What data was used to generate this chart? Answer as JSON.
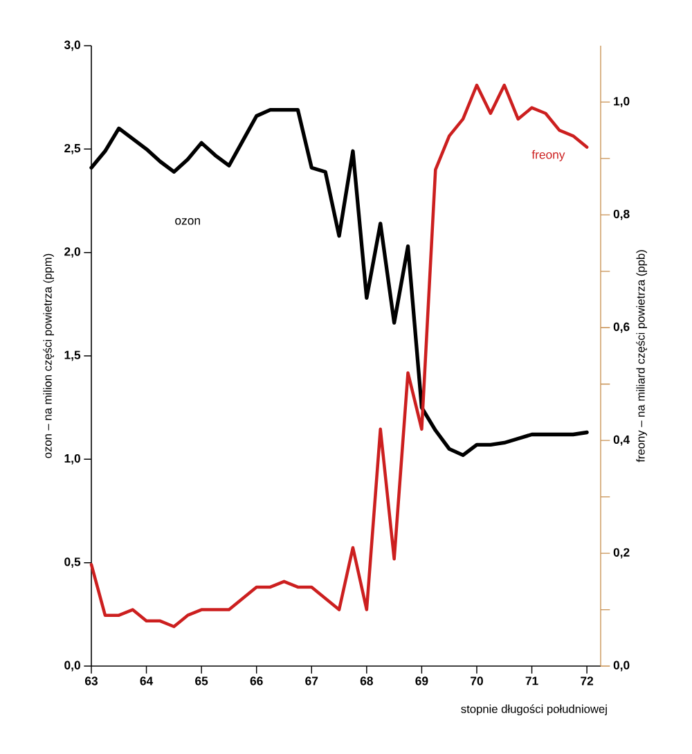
{
  "chart_data": {
    "type": "line",
    "xlabel": "stopnie długości południowej",
    "ylabel": "ozon – na milion części powietrza (ppm)",
    "y2label": "freony – na miliard części powietrza (ppb)",
    "x": [
      63,
      63.25,
      63.5,
      63.75,
      64,
      64.25,
      64.5,
      64.75,
      65,
      65.25,
      65.5,
      65.75,
      66,
      66.25,
      66.5,
      66.75,
      67,
      67.25,
      67.5,
      67.75,
      68,
      68.25,
      68.5,
      68.75,
      69,
      69.25,
      69.5,
      69.75,
      70,
      70.25,
      70.5,
      70.75,
      71,
      71.25,
      71.5,
      71.75,
      72
    ],
    "series": [
      {
        "name": "ozon",
        "color": "#000000",
        "values": [
          2.41,
          2.49,
          2.6,
          2.55,
          2.5,
          2.44,
          2.39,
          2.45,
          2.53,
          2.47,
          2.42,
          2.54,
          2.66,
          2.69,
          2.69,
          2.69,
          2.41,
          2.39,
          2.08,
          2.49,
          1.78,
          2.14,
          1.66,
          2.03,
          1.25,
          1.14,
          1.05,
          1.02,
          1.07,
          1.07,
          1.08,
          1.1,
          1.12,
          1.12,
          1.12,
          1.12,
          1.13
        ]
      },
      {
        "name": "freony",
        "color": "#cc1f1f",
        "axis": "y2",
        "values": [
          0.18,
          0.09,
          0.09,
          0.1,
          0.08,
          0.08,
          0.07,
          0.09,
          0.1,
          0.1,
          0.1,
          0.12,
          0.14,
          0.14,
          0.15,
          0.14,
          0.14,
          0.12,
          0.1,
          0.21,
          0.1,
          0.42,
          0.19,
          0.52,
          0.42,
          0.88,
          0.94,
          0.97,
          1.03,
          0.98,
          1.03,
          0.97,
          0.99,
          0.98,
          0.95,
          0.94,
          0.92
        ]
      }
    ],
    "xlim": [
      63,
      72.25
    ],
    "xticks": [
      63,
      64,
      65,
      66,
      67,
      68,
      69,
      70,
      71,
      72
    ],
    "ylim": [
      0,
      3
    ],
    "yticks": [
      {
        "value": 0,
        "label": "0,0"
      },
      {
        "value": 0.5,
        "label": "0,5"
      },
      {
        "value": 1,
        "label": "1,0"
      },
      {
        "value": 1.5,
        "label": "1,5"
      },
      {
        "value": 2,
        "label": "2,0"
      },
      {
        "value": 2.5,
        "label": "2,5"
      },
      {
        "value": 3,
        "label": "3,0"
      }
    ],
    "y2lim": [
      0,
      1.1
    ],
    "y2ticks": [
      {
        "value": 0,
        "label": "0,0"
      },
      {
        "value": 0.1,
        "label": null
      },
      {
        "value": 0.2,
        "label": "0,2"
      },
      {
        "value": 0.3,
        "label": null
      },
      {
        "value": 0.4,
        "label": "0,4"
      },
      {
        "value": 0.5,
        "label": null
      },
      {
        "value": 0.6,
        "label": "0,6"
      },
      {
        "value": 0.7,
        "label": null
      },
      {
        "value": 0.8,
        "label": "0,8"
      },
      {
        "value": 0.9,
        "label": null
      },
      {
        "value": 1,
        "label": "1,0"
      }
    ]
  }
}
